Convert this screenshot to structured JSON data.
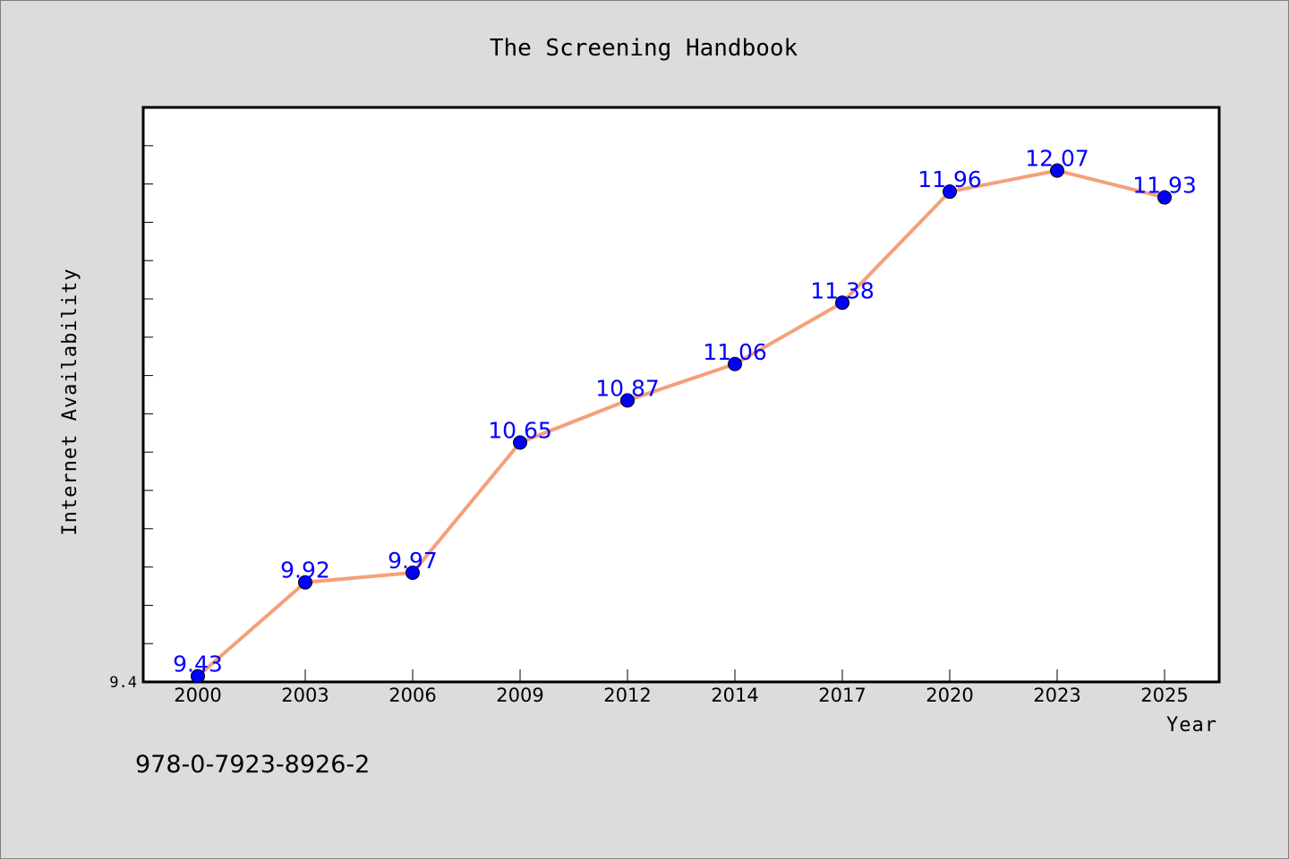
{
  "chart_data": {
    "type": "line",
    "title": "The Screening Handbook",
    "xlabel": "Year",
    "ylabel": "Internet Availability",
    "x": [
      "2000",
      "2003",
      "2006",
      "2009",
      "2012",
      "2014",
      "2017",
      "2020",
      "2023",
      "2025"
    ],
    "series": [
      {
        "values": [
          9.43,
          9.92,
          9.97,
          10.65,
          10.87,
          11.06,
          11.38,
          11.96,
          12.07,
          11.93
        ],
        "line_color": "#f4a07a",
        "marker_color": "#0000ff"
      }
    ],
    "data_labels": [
      "9.43",
      "9.92",
      "9.97",
      "10.65",
      "10.87",
      "11.06",
      "11.38",
      "11.96",
      "12.07",
      "11.93"
    ],
    "ylim": [
      9.4,
      12.4
    ],
    "y_tick_label": "9.4",
    "grid": false,
    "legend": "none"
  },
  "footer": {
    "isbn": "978-0-7923-8926-2"
  }
}
